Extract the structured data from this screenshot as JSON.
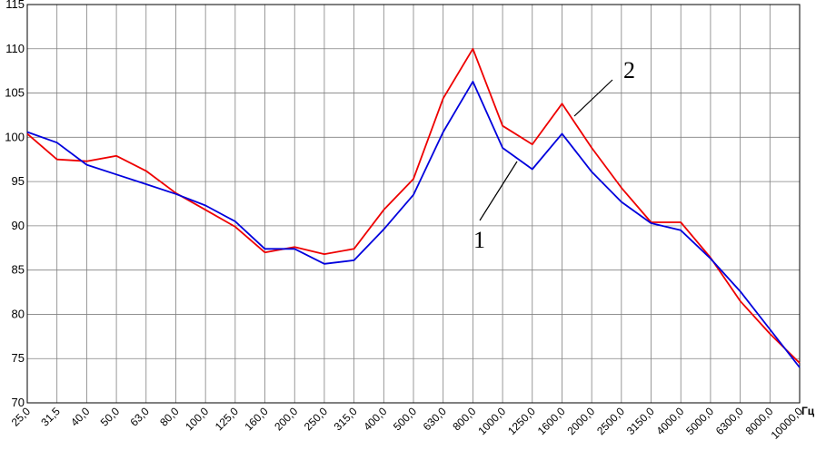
{
  "chart_data": {
    "type": "line",
    "title": "",
    "xlabel": "Гц",
    "ylabel": "",
    "categories": [
      "25,0",
      "31,5",
      "40,0",
      "50,0",
      "63,0",
      "80,0",
      "100,0",
      "125,0",
      "160,0",
      "200,0",
      "250,0",
      "315,0",
      "400,0",
      "500,0",
      "630,0",
      "800,0",
      "1000,0",
      "1250,0",
      "1600,0",
      "2000,0",
      "2500,0",
      "3150,0",
      "4000,0",
      "5000,0",
      "6300,0",
      "8000,0",
      "10000,0"
    ],
    "yticks": [
      "70",
      "75",
      "80",
      "85",
      "90",
      "95",
      "100",
      "105",
      "110",
      "115"
    ],
    "ylim": [
      70,
      115
    ],
    "grid": true,
    "series": [
      {
        "name": "1",
        "color": "#0000dd",
        "values": [
          100.6,
          99.4,
          96.9,
          95.8,
          94.7,
          93.6,
          92.3,
          90.5,
          87.4,
          87.4,
          85.7,
          86.1,
          89.6,
          93.5,
          100.6,
          106.3,
          98.8,
          96.4,
          100.4,
          96.1,
          92.7,
          90.3,
          89.5,
          86.3,
          82.6,
          78.3,
          74.0
        ]
      },
      {
        "name": "2",
        "color": "#ee0000",
        "values": [
          100.4,
          97.5,
          97.3,
          97.9,
          96.2,
          93.7,
          91.8,
          89.9,
          87.0,
          87.6,
          86.8,
          87.4,
          91.8,
          95.3,
          104.4,
          110.0,
          101.3,
          99.2,
          103.8,
          98.8,
          94.3,
          90.4,
          90.4,
          86.4,
          81.5,
          77.8,
          74.5
        ]
      }
    ]
  }
}
